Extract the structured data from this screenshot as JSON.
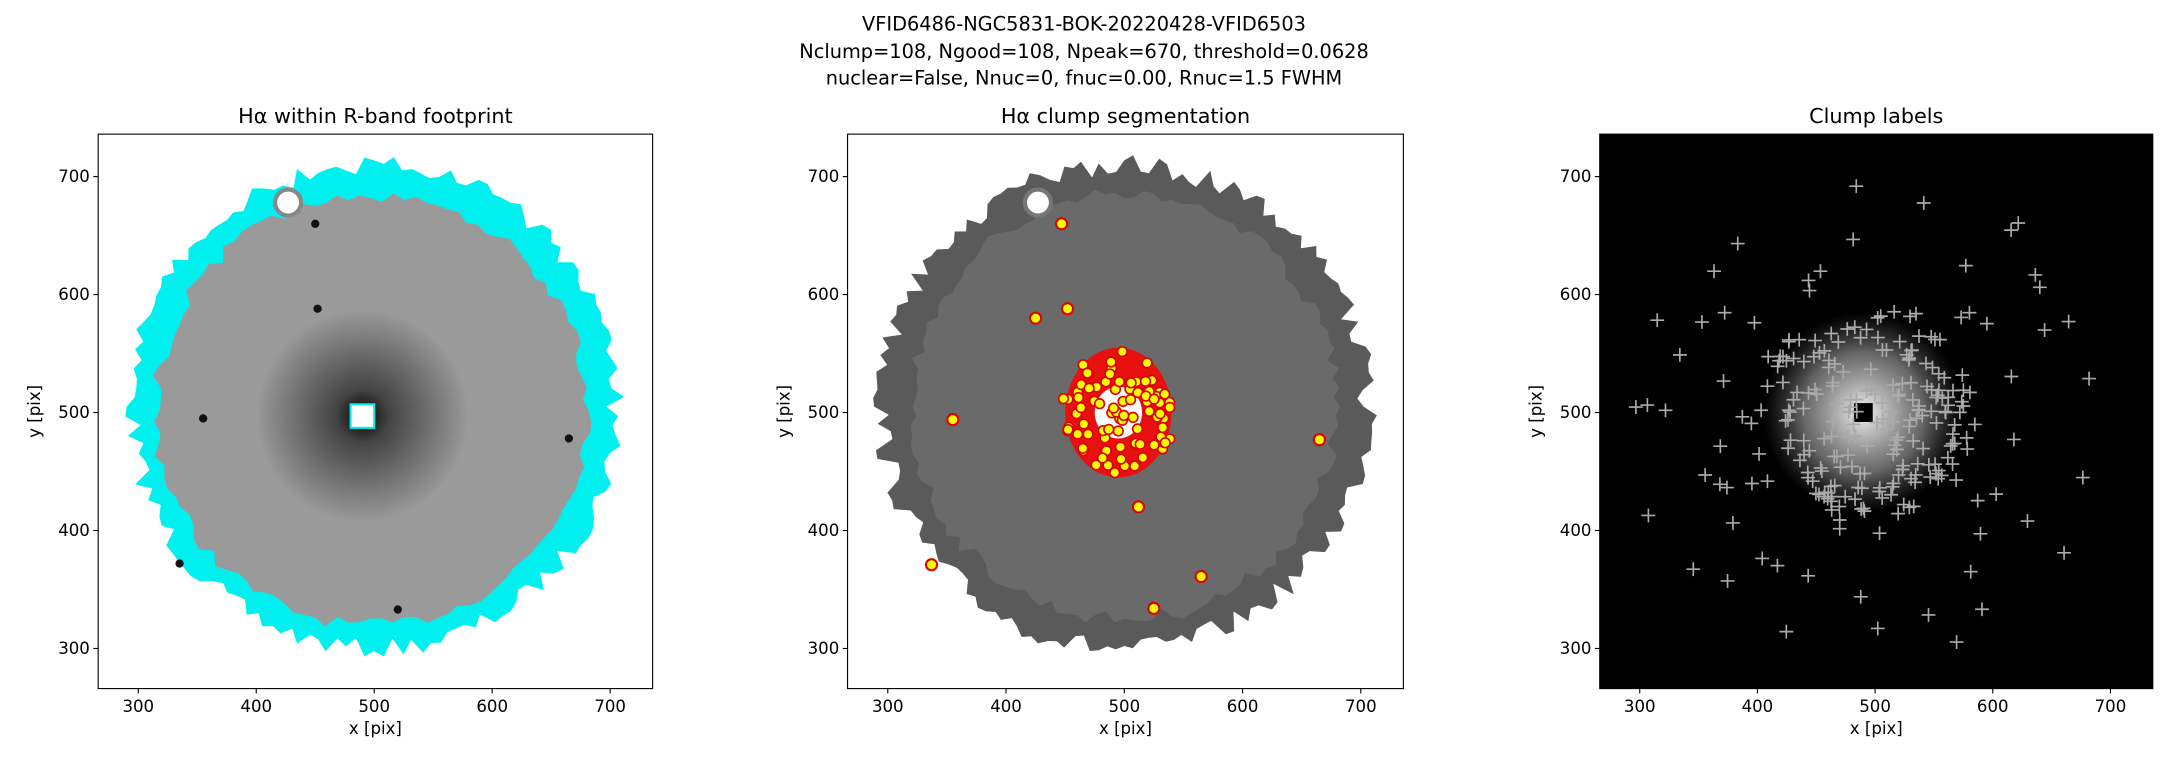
{
  "figure_title": [
    "VFID6486-NGC5831-BOK-20220428-VFID6503",
    "Nclump=108, Ngood=108, Npeak=670, threshold=0.0628",
    "nuclear=False, Nnuc=0, fnuc=0.00, Rnuc=1.5 FWHM"
  ],
  "chart_data": [
    {
      "type": "image",
      "title": "Hα within R-band footprint",
      "xlabel": "x [pix]",
      "ylabel": "y [pix]",
      "xlim": [
        266,
        736
      ],
      "ylim": [
        266,
        736
      ],
      "xticks": [
        300,
        400,
        500,
        600,
        700
      ],
      "yticks": [
        300,
        400,
        500,
        600,
        700
      ],
      "background": "#ffffff"
    },
    {
      "type": "image",
      "title": "Hα clump segmentation",
      "xlabel": "x [pix]",
      "ylabel": "y [pix]",
      "xlim": [
        266,
        736
      ],
      "ylim": [
        266,
        736
      ],
      "xticks": [
        300,
        400,
        500,
        600,
        700
      ],
      "yticks": [
        300,
        400,
        500,
        600,
        700
      ],
      "background": "#ffffff"
    },
    {
      "type": "image",
      "title": "Clump labels",
      "xlabel": "x [pix]",
      "ylabel": "y [pix]",
      "xlim": [
        266,
        736
      ],
      "ylim": [
        266,
        736
      ],
      "xticks": [
        300,
        400,
        500,
        600,
        700
      ],
      "yticks": [
        300,
        400,
        500,
        600,
        700
      ],
      "background": "#000000"
    }
  ]
}
